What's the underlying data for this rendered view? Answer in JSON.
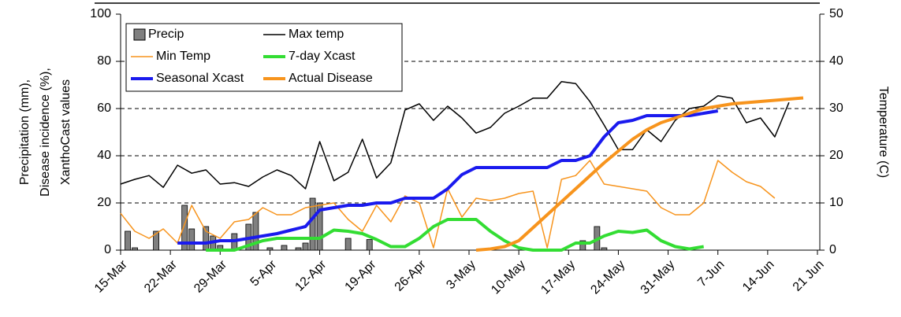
{
  "chart_data": {
    "type": "combo",
    "ylabel": [
      "Precipitation (mm),",
      "Disease incidence (%),",
      "XanthoCast values"
    ],
    "y2label": "Temperature (C)",
    "x": [
      "15-Mar",
      "17-Mar",
      "19-Mar",
      "21-Mar",
      "23-Mar",
      "25-Mar",
      "27-Mar",
      "29-Mar",
      "31-Mar",
      "2-Apr",
      "4-Apr",
      "6-Apr",
      "8-Apr",
      "10-Apr",
      "12-Apr",
      "14-Apr",
      "16-Apr",
      "18-Apr",
      "20-Apr",
      "22-Apr",
      "24-Apr",
      "26-Apr",
      "28-Apr",
      "30-Apr",
      "2-May",
      "4-May",
      "6-May",
      "8-May",
      "10-May",
      "12-May",
      "14-May",
      "16-May",
      "18-May",
      "20-May",
      "22-May",
      "24-May",
      "26-May",
      "28-May",
      "30-May",
      "1-Jun",
      "3-Jun",
      "5-Jun",
      "7-Jun",
      "9-Jun",
      "11-Jun",
      "13-Jun",
      "15-Jun",
      "17-Jun",
      "19-Jun"
    ],
    "xlim": [
      "15-Mar",
      "21-Jun"
    ],
    "xticks": [
      "15-Mar",
      "22-Mar",
      "29-Mar",
      "5-Apr",
      "12-Apr",
      "19-Apr",
      "26-Apr",
      "3-May",
      "10-May",
      "17-May",
      "24-May",
      "31-May",
      "7-Jun",
      "14-Jun",
      {
        "value": "21-Jun",
        "label": "21 Jun"
      }
    ],
    "ylim": [
      0,
      100
    ],
    "yticks": [
      0,
      20,
      40,
      60,
      80,
      100
    ],
    "y2lim": [
      0,
      50
    ],
    "y2ticks": [
      0,
      10,
      20,
      30,
      40,
      50
    ],
    "grid": true,
    "legend": "upper left",
    "series": [
      {
        "name": "Precip",
        "type": "bar",
        "color": "#808080",
        "x": [
          "16-Mar",
          "17-Mar",
          "20-Mar",
          "24-Mar",
          "25-Mar",
          "27-Mar",
          "28-Mar",
          "29-Mar",
          "31-Mar",
          "2-Apr",
          "3-Apr",
          "5-Apr",
          "7-Apr",
          "9-Apr",
          "10-Apr",
          "11-Apr",
          "12-Apr",
          "16-Apr",
          "19-Apr",
          "19-May",
          "21-May",
          "22-May"
        ],
        "values": [
          8,
          1,
          8,
          19,
          9,
          10,
          6,
          2,
          7,
          11,
          16,
          1,
          2,
          1,
          3,
          22,
          20,
          5,
          4.5,
          4,
          10,
          1
        ]
      },
      {
        "name": "Max temp",
        "type": "line",
        "axis": "y2",
        "color": "#000000",
        "line_width": 1.5,
        "values": [
          14,
          15,
          15.8,
          13.3,
          18,
          16.3,
          17,
          14,
          14.3,
          13.5,
          15.5,
          17,
          15.8,
          13,
          23,
          14.7,
          16.5,
          23.5,
          15.3,
          18.5,
          29.7,
          31,
          27.5,
          30.5,
          28,
          24.8,
          26,
          29,
          30.5,
          32.2,
          32.2,
          35.7,
          35.3,
          31.5,
          26.5,
          21.3,
          21.3,
          25.5,
          23,
          27.5,
          30,
          30.5,
          32.7,
          32.2,
          27,
          28,
          24,
          31.3,
          null
        ]
      },
      {
        "name": "Min Temp",
        "type": "line",
        "axis": "y2",
        "color": "#f7941d",
        "line_width": 1.5,
        "values": [
          7.8,
          4,
          2.5,
          4.5,
          1.5,
          9.5,
          4,
          2.5,
          6,
          6.5,
          9,
          7.5,
          7.5,
          9,
          9.5,
          10,
          6.5,
          4,
          9.5,
          6,
          11.5,
          10,
          0.5,
          13,
          7,
          11,
          10.5,
          11,
          12,
          12.5,
          0.5,
          15,
          15.8,
          19,
          14,
          13.5,
          13,
          12.5,
          9,
          7.5,
          7.5,
          10,
          19,
          16.5,
          14.5,
          13.5,
          11,
          null,
          null
        ]
      },
      {
        "name": "7-day Xcast",
        "type": "line",
        "color": "#33dd33",
        "line_width": 4,
        "values": [
          null,
          null,
          null,
          null,
          null,
          null,
          0,
          0,
          0,
          2,
          4,
          5,
          5,
          5,
          5,
          8.5,
          8,
          7,
          4.5,
          1.5,
          1.5,
          5,
          10,
          13,
          13,
          13,
          8,
          4,
          1,
          0,
          0,
          0,
          3,
          3,
          6,
          8,
          7.5,
          8.5,
          4,
          1.5,
          0.5,
          1.5,
          null,
          null,
          null,
          null,
          null,
          null,
          null
        ]
      },
      {
        "name": "Seasonal Xcast",
        "type": "line",
        "color": "#1a1aee",
        "line_width": 4,
        "values": [
          null,
          null,
          null,
          null,
          3,
          3,
          3,
          4,
          4,
          5,
          6,
          7,
          8.5,
          10,
          17,
          18,
          19,
          19,
          20,
          20,
          22,
          22,
          22,
          26,
          32,
          35,
          35,
          35,
          35,
          35,
          35,
          38,
          38,
          40,
          48,
          54,
          55,
          57,
          57,
          57,
          57,
          58,
          59,
          null,
          null,
          null,
          null,
          null,
          null
        ]
      },
      {
        "name": "Actual Disease",
        "type": "line",
        "color": "#f7941d",
        "line_width": 4,
        "values": [
          null,
          null,
          null,
          null,
          null,
          null,
          null,
          null,
          null,
          null,
          null,
          null,
          null,
          null,
          null,
          null,
          null,
          null,
          null,
          null,
          null,
          null,
          null,
          null,
          null,
          0,
          0.5,
          1.5,
          4,
          9.5,
          15,
          20.5,
          26,
          31.5,
          37,
          42,
          47,
          51,
          54,
          56,
          58,
          60,
          61,
          62,
          62.5,
          63,
          63.5,
          64,
          64.5
        ]
      }
    ]
  }
}
